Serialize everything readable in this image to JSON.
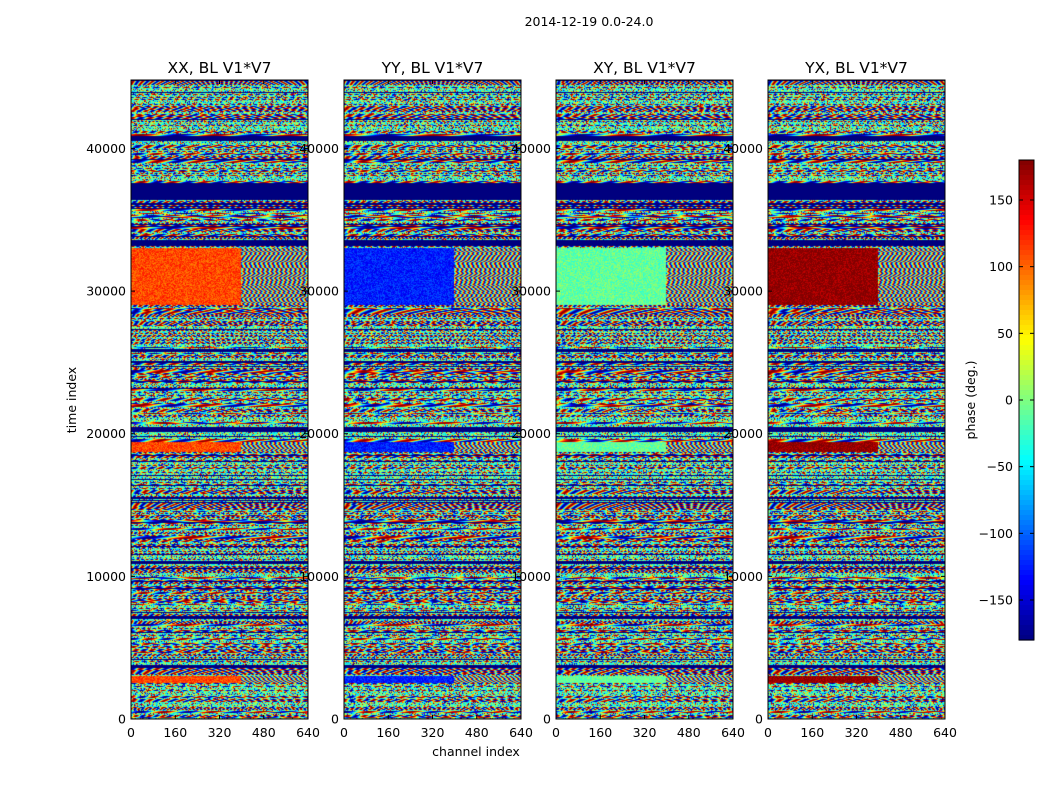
{
  "chart_data": {
    "type": "heatmap",
    "suptitle": "2014-12-19 0.0-24.0",
    "xlabel": "channel index",
    "ylabel": "time index",
    "xlim": [
      0,
      640
    ],
    "ylim": [
      0,
      44800
    ],
    "xticks": [
      0,
      160,
      320,
      480,
      640
    ],
    "yticks": [
      0,
      10000,
      20000,
      30000,
      40000
    ],
    "panels": [
      {
        "title": "XX, BL V1*V7",
        "coherent_phase_deg": 110
      },
      {
        "title": "YY, BL V1*V7",
        "coherent_phase_deg": -125
      },
      {
        "title": "XY, BL V1*V7",
        "coherent_phase_deg": -10
      },
      {
        "title": "YX, BL V1*V7",
        "coherent_phase_deg": 175
      }
    ],
    "colorbar": {
      "label": "phase (deg.)",
      "range": [
        -180,
        180
      ],
      "ticks": [
        -150,
        -100,
        -50,
        0,
        50,
        100,
        150
      ],
      "colormap": "jet"
    },
    "bands": {
      "null": [
        [
          36400,
          37600
        ],
        [
          33150,
          33550
        ],
        [
          40600,
          40900
        ],
        [
          25700,
          25950
        ],
        [
          20150,
          20450
        ],
        [
          10850,
          11100
        ],
        [
          7000,
          7200
        ],
        [
          3600,
          3800
        ],
        [
          15400,
          15550
        ]
      ],
      "coherent": [
        [
          29000,
          33000
        ],
        [
          18700,
          19400
        ],
        [
          2500,
          3000
        ]
      ],
      "coherent_channel_max": 395
    },
    "colors": {
      "background": "#ffffff",
      "null_value": "#00007f"
    }
  }
}
